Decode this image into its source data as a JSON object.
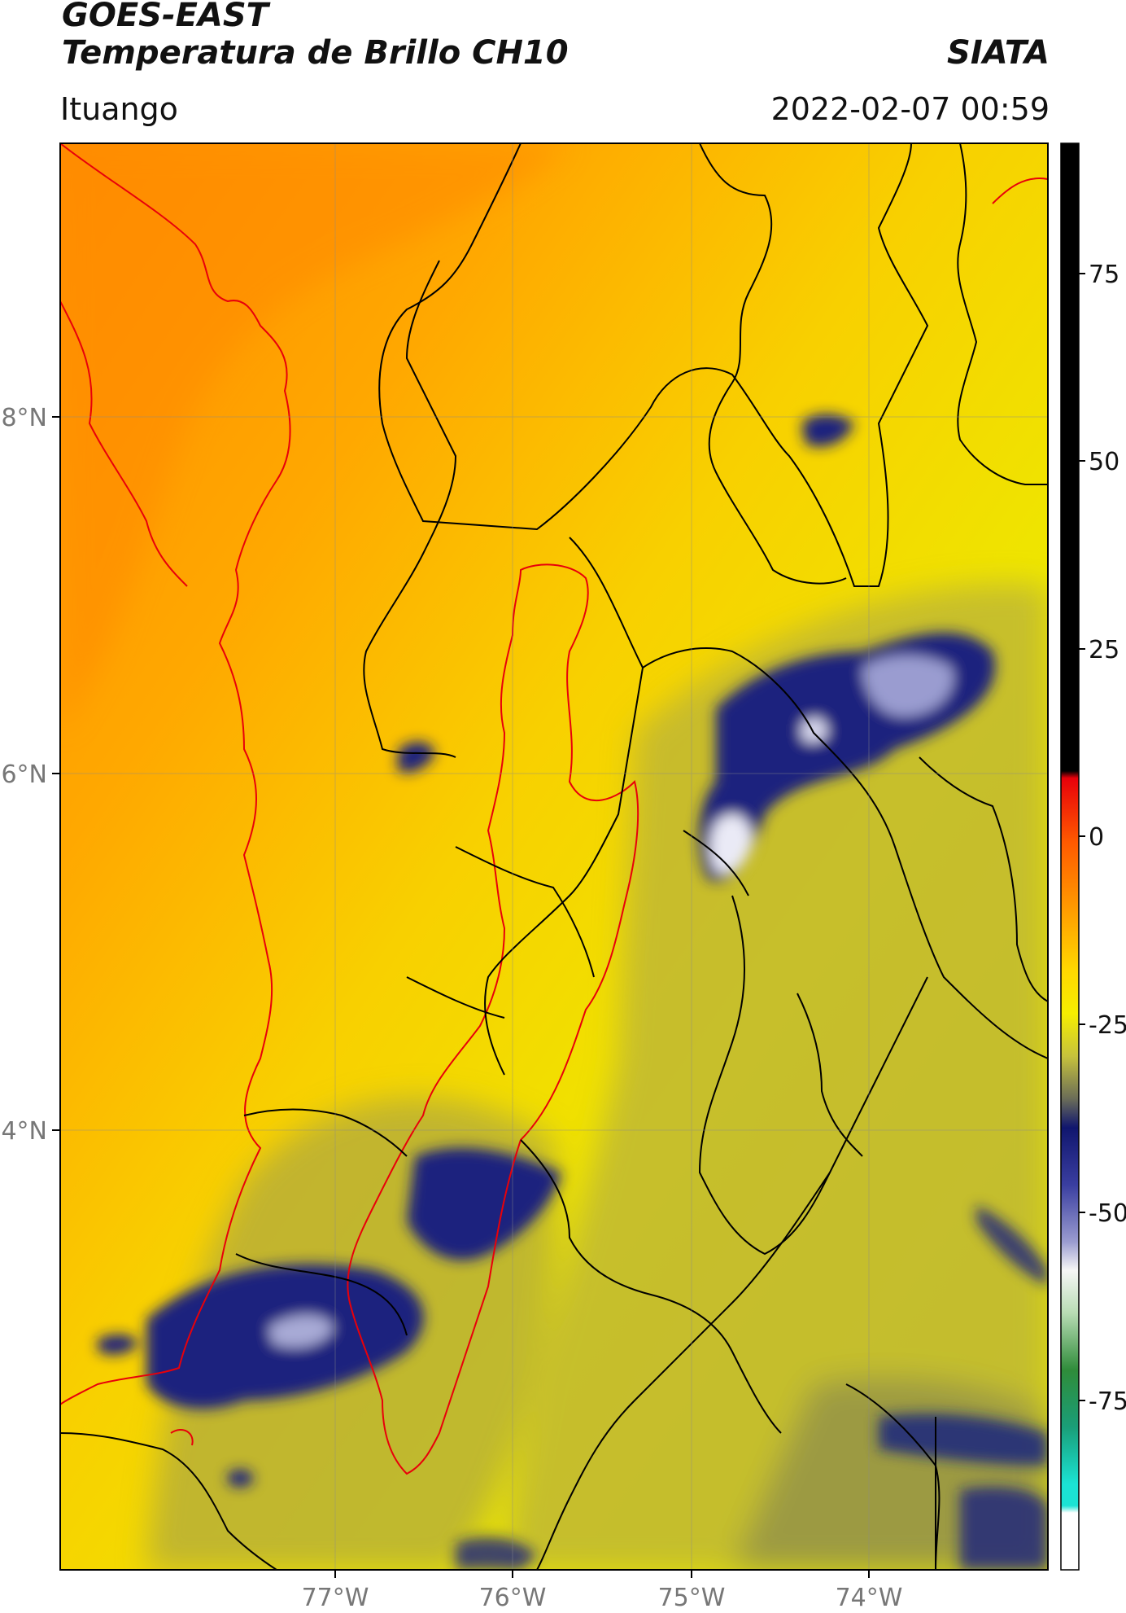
{
  "header": {
    "line1": "GOES-EAST",
    "line2": "Temperatura de Brillo CH10",
    "organization": "SIATA",
    "region": "Ituango",
    "timestamp": "2022-02-07 00:59"
  },
  "map": {
    "lon_ticks": [
      "77°W",
      "76°W",
      "75°W",
      "74°W"
    ],
    "lat_ticks": [
      "8°N",
      "6°N",
      "4°N"
    ],
    "gridlines": true
  },
  "colorbar": {
    "ticks": [
      "75",
      "50",
      "25",
      "0",
      "-25",
      "-50",
      "-75"
    ],
    "colors": {
      "black": "#000000",
      "red": "#e8000a",
      "orange": "#ff9a00",
      "yellow": "#f2e800",
      "olive": "#b8b43a",
      "dark_blue": "#16207a",
      "white": "#f6f6f6",
      "green": "#2f8c3a",
      "cyan": "#1be3d4"
    }
  },
  "colors": {
    "warm_sea": "#ff9a00",
    "land_warm": "#f5d400",
    "cloud_cold": "#1a237e",
    "border": "#000000",
    "basin": "#e8000a"
  }
}
